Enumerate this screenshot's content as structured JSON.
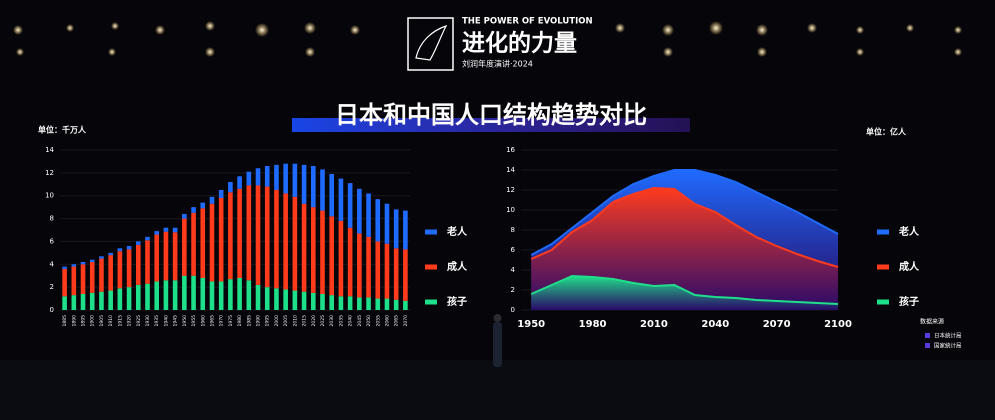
{
  "header": {
    "kicker": "THE POWER OF EVOLUTION",
    "brand": "进化的力量",
    "event": "刘润年度演讲·2024"
  },
  "title": "日本和中国人口结构趋势对比",
  "source": {
    "label": "数据来源",
    "items": [
      "日本统计局",
      "国家统计局"
    ]
  },
  "chart_data": [
    {
      "type": "bar",
      "stacked": true,
      "y_label": "单位：千万人",
      "categories": [
        "1885",
        "1890",
        "1895",
        "1900",
        "1905",
        "1910",
        "1915",
        "1920",
        "1925",
        "1930",
        "1935",
        "1940",
        "1945",
        "1950",
        "1955",
        "1960",
        "1965",
        "1970",
        "1975",
        "1980",
        "1985",
        "1990",
        "1995",
        "2000",
        "2005",
        "2010",
        "2015",
        "2020",
        "2025",
        "2030",
        "2035",
        "2040",
        "2045",
        "2050",
        "2055",
        "2060",
        "2065",
        "2070"
      ],
      "series": [
        {
          "name": "老人",
          "color": "#1f6bff",
          "values": [
            0.2,
            0.2,
            0.2,
            0.2,
            0.2,
            0.2,
            0.25,
            0.3,
            0.3,
            0.3,
            0.3,
            0.35,
            0.4,
            0.4,
            0.5,
            0.5,
            0.6,
            0.7,
            0.9,
            1.1,
            1.2,
            1.5,
            1.8,
            2.2,
            2.6,
            2.9,
            3.4,
            3.6,
            3.6,
            3.7,
            3.7,
            3.9,
            3.9,
            3.8,
            3.7,
            3.5,
            3.4,
            3.4
          ]
        },
        {
          "name": "成人",
          "color": "#ff3b1c",
          "values": [
            2.4,
            2.5,
            2.6,
            2.7,
            2.9,
            3.1,
            3.25,
            3.3,
            3.5,
            3.8,
            4.1,
            4.25,
            4.2,
            5.0,
            5.5,
            6.1,
            6.8,
            7.3,
            7.6,
            7.8,
            8.3,
            8.7,
            8.8,
            8.6,
            8.4,
            8.2,
            7.7,
            7.5,
            7.3,
            6.9,
            6.6,
            6.0,
            5.6,
            5.3,
            5.0,
            4.8,
            4.5,
            4.5
          ]
        },
        {
          "name": "孩子",
          "color": "#1fe08a",
          "values": [
            1.2,
            1.3,
            1.4,
            1.5,
            1.6,
            1.7,
            1.9,
            2.0,
            2.2,
            2.3,
            2.5,
            2.6,
            2.6,
            3.0,
            3.0,
            2.8,
            2.5,
            2.5,
            2.7,
            2.8,
            2.6,
            2.2,
            2.0,
            1.9,
            1.8,
            1.7,
            1.6,
            1.5,
            1.4,
            1.3,
            1.2,
            1.2,
            1.1,
            1.1,
            1.0,
            1.0,
            0.9,
            0.8
          ]
        }
      ],
      "ylim": [
        0,
        14
      ],
      "yticks": [
        0,
        2,
        4,
        6,
        8,
        10,
        12,
        14
      ]
    },
    {
      "type": "area",
      "stacked": true,
      "y_label": "单位：亿人",
      "x": [
        1950,
        1960,
        1970,
        1980,
        1990,
        2000,
        2010,
        2020,
        2030,
        2040,
        2050,
        2060,
        2070,
        2080,
        2090,
        2100
      ],
      "series": [
        {
          "name": "老人",
          "color": "#1f6bff",
          "values": [
            0.4,
            0.6,
            0.4,
            0.8,
            0.6,
            1.0,
            1.2,
            1.9,
            3.4,
            3.7,
            4.3,
            4.5,
            4.4,
            4.2,
            3.8,
            3.3
          ]
        },
        {
          "name": "成人",
          "color": "#ff3b1c",
          "values": [
            3.5,
            3.5,
            4.4,
            5.7,
            7.7,
            8.9,
            9.8,
            9.6,
            9.1,
            8.5,
            7.3,
            6.3,
            5.5,
            4.8,
            4.2,
            3.7
          ]
        },
        {
          "name": "孩子",
          "color": "#1fe08a",
          "values": [
            1.6,
            2.5,
            3.4,
            3.3,
            3.1,
            2.7,
            2.4,
            2.5,
            1.5,
            1.3,
            1.2,
            1.0,
            0.9,
            0.8,
            0.7,
            0.6
          ]
        }
      ],
      "xlim": [
        1945,
        2100
      ],
      "xticks": [
        1950,
        1980,
        2010,
        2040,
        2070,
        2100
      ],
      "ylim": [
        0,
        16
      ],
      "yticks": [
        0,
        2,
        4,
        6,
        8,
        10,
        12,
        14,
        16
      ]
    }
  ]
}
